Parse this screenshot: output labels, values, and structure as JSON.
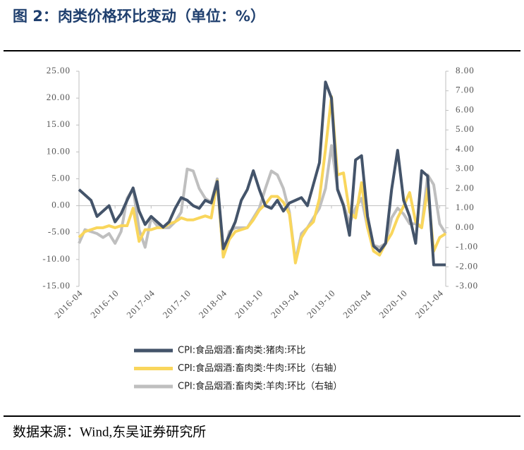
{
  "title": "图 2：肉类价格环比变动（单位：%）",
  "source": "数据来源：Wind,东吴证券研究所",
  "chart_data": {
    "type": "line",
    "categories": [
      "2016-04",
      null,
      null,
      null,
      null,
      null,
      "2016-10",
      null,
      null,
      null,
      null,
      null,
      "2017-04",
      null,
      null,
      null,
      null,
      null,
      "2017-10",
      null,
      null,
      null,
      null,
      null,
      "2018-04",
      null,
      null,
      null,
      null,
      null,
      "2018-10",
      null,
      null,
      null,
      null,
      null,
      "2019-04",
      null,
      null,
      null,
      null,
      null,
      "2019-10",
      null,
      null,
      null,
      null,
      null,
      "2020-04",
      null,
      null,
      null,
      null,
      null,
      "2020-10",
      null,
      null,
      null,
      null,
      null,
      "2021-04",
      null
    ],
    "series": [
      {
        "name": "CPI:食品烟酒:畜肉类:猪肉:环比",
        "color": "#44546a",
        "values": [
          3.0,
          2.0,
          1.0,
          -2.0,
          -1.0,
          0.0,
          -3.0,
          -1.5,
          1.0,
          3.3,
          -1.0,
          -3.5,
          -2.0,
          -3.0,
          -4.0,
          -3.0,
          -0.5,
          1.5,
          1.0,
          0.0,
          -0.5,
          1.0,
          0.5,
          4.5,
          -8.0,
          -5.5,
          -3.0,
          1.0,
          3.0,
          6.5,
          3.0,
          0.0,
          -0.5,
          1.0,
          -1.0,
          0.5,
          1.0,
          1.5,
          0.0,
          4.0,
          8.0,
          23.0,
          20.0,
          3.0,
          0.0,
          -5.5,
          8.5,
          9.3,
          -2.0,
          -7.5,
          -8.5,
          -7.0,
          3.0,
          10.3,
          1.0,
          -2.0,
          -7.0,
          6.5,
          5.5,
          -11.0,
          -11.0,
          -11.0
        ]
      },
      {
        "name": "CPI:食品烟酒:畜肉类:牛肉:环比（右轴）",
        "color": "#f9d65c",
        "axis": "y2",
        "values": [
          -0.5,
          -0.2,
          -0.1,
          0.0,
          0.0,
          0.1,
          0.0,
          0.1,
          0.1,
          1.0,
          -0.7,
          -0.1,
          -0.1,
          0.0,
          0.0,
          0.2,
          0.3,
          0.5,
          0.4,
          0.4,
          0.5,
          0.6,
          0.5,
          2.4,
          -1.5,
          -0.6,
          -0.2,
          -0.1,
          0.0,
          0.4,
          0.9,
          1.2,
          1.6,
          1.6,
          1.3,
          0.7,
          -1.8,
          -0.5,
          0.0,
          0.3,
          1.5,
          4.0,
          6.7,
          2.7,
          2.8,
          0.8,
          0.5,
          2.3,
          0.0,
          -1.2,
          -1.4,
          -0.8,
          -0.3,
          0.5,
          1.1,
          1.8,
          0.3,
          0.0,
          2.0,
          -1.2,
          -0.5,
          -0.3
        ]
      },
      {
        "name": "CPI:食品烟酒:畜肉类:羊肉:环比（右轴）",
        "color": "#bfbfbf",
        "axis": "y2",
        "values": [
          -0.8,
          -0.1,
          -0.2,
          -0.3,
          -0.5,
          -0.3,
          -0.8,
          -0.2,
          1.5,
          2.0,
          -0.1,
          -1.0,
          0.5,
          0.1,
          0.0,
          0.0,
          0.3,
          0.8,
          3.0,
          2.9,
          2.0,
          1.5,
          1.3,
          2.5,
          -1.5,
          -0.2,
          0.0,
          0.0,
          0.0,
          0.5,
          1.0,
          2.0,
          2.9,
          2.7,
          2.0,
          0.8,
          -1.7,
          -0.3,
          0.0,
          0.5,
          1.0,
          2.0,
          4.2,
          2.0,
          1.2,
          0.2,
          1.0,
          1.5,
          0.0,
          -0.9,
          -1.0,
          -0.8,
          0.5,
          1.0,
          0.7,
          0.2,
          0.2,
          0.0,
          2.7,
          2.2,
          0.2,
          -0.3
        ]
      }
    ],
    "ylim": [
      -15,
      25
    ],
    "yticks": [
      {
        "value": 25,
        "label": "25.00"
      },
      {
        "value": 20,
        "label": "20.00"
      },
      {
        "value": 15,
        "label": "15.00"
      },
      {
        "value": 10,
        "label": "10.00"
      },
      {
        "value": 5,
        "label": "5.00"
      },
      {
        "value": 0,
        "label": "0.00"
      },
      {
        "value": -5,
        "label": "-5.00"
      },
      {
        "value": -10,
        "label": "-10.00"
      },
      {
        "value": -15,
        "label": "-15.00"
      }
    ],
    "y2lim": [
      -3,
      8
    ],
    "y2ticks": [
      {
        "value": 8,
        "label": "8.00"
      },
      {
        "value": 7,
        "label": "7.00"
      },
      {
        "value": 6,
        "label": "6.00"
      },
      {
        "value": 5,
        "label": "5.00"
      },
      {
        "value": 4,
        "label": "4.00"
      },
      {
        "value": 3,
        "label": "3.00"
      },
      {
        "value": 2,
        "label": "2.00"
      },
      {
        "value": 1,
        "label": "1.00"
      },
      {
        "value": 0,
        "label": "0.00"
      },
      {
        "value": -1,
        "label": "-1.00"
      },
      {
        "value": -2,
        "label": "-2.00"
      },
      {
        "value": -3,
        "label": "-3.00"
      }
    ]
  }
}
